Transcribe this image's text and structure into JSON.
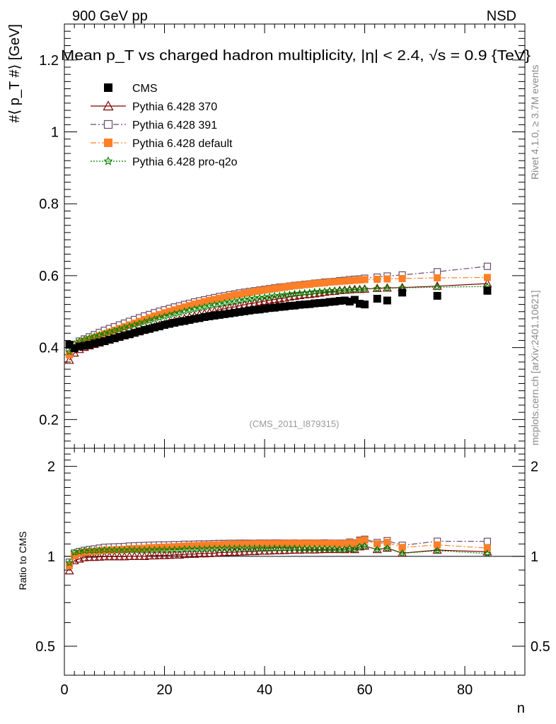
{
  "header": {
    "energy_label": "900 GeV pp",
    "process_label": "NSD",
    "title": "Mean p_T vs charged hadron multiplicity, |η| < 2.4, √s = 0.9 {TeV}",
    "watermark": "(CMS_2011_I879315)",
    "side_rivet": "Rivet 4.1.0, ≥ 3.7M events",
    "side_mcplots": "mcplots.cern.ch [arXiv:2401.10621]"
  },
  "chart_data": {
    "type": "scatter",
    "title": "Mean p_T vs charged hadron multiplicity, |η| < 2.4, √s = 0.9 {TeV}",
    "xlabel": "n",
    "ylabel": "#⟨ p_T #⟩ [GeV]",
    "ratio_ylabel": "Ratio to CMS",
    "xlim": [
      0,
      92
    ],
    "ylim": [
      0.12,
      1.3
    ],
    "ratio_ylim": [
      0.4,
      2.3
    ],
    "x_ticks": [
      0,
      20,
      40,
      60,
      80
    ],
    "y_ticks": [
      0.2,
      0.4,
      0.6,
      0.8,
      1,
      1.2
    ],
    "ratio_ticks": [
      0.5,
      1,
      2
    ],
    "legend_position": "top-left",
    "x": [
      1,
      2,
      3,
      4,
      5,
      6,
      7,
      8,
      9,
      10,
      11,
      12,
      13,
      14,
      15,
      16,
      17,
      18,
      19,
      20,
      21,
      22,
      23,
      24,
      25,
      26,
      27,
      28,
      29,
      30,
      31,
      32,
      33,
      34,
      35,
      36,
      37,
      38,
      39,
      40,
      41,
      42,
      43,
      44,
      45,
      46,
      47,
      48,
      49,
      50,
      51,
      52,
      53,
      54,
      55,
      56,
      57,
      58,
      59,
      60,
      62.5,
      64.5,
      67.5,
      74.5,
      84.5
    ],
    "series": [
      {
        "name": "CMS",
        "color": "#000000",
        "marker": "filled-square",
        "line": "none",
        "values": [
          0.408,
          0.398,
          0.403,
          0.405,
          0.408,
          0.412,
          0.415,
          0.418,
          0.422,
          0.426,
          0.43,
          0.434,
          0.437,
          0.441,
          0.445,
          0.449,
          0.452,
          0.456,
          0.459,
          0.463,
          0.466,
          0.469,
          0.472,
          0.474,
          0.477,
          0.48,
          0.482,
          0.485,
          0.487,
          0.489,
          0.491,
          0.493,
          0.495,
          0.497,
          0.499,
          0.501,
          0.503,
          0.505,
          0.506,
          0.508,
          0.51,
          0.511,
          0.513,
          0.514,
          0.516,
          0.517,
          0.519,
          0.52,
          0.521,
          0.523,
          0.524,
          0.525,
          0.527,
          0.528,
          0.53,
          0.531,
          0.528,
          0.533,
          0.522,
          0.52,
          0.536,
          0.531,
          0.553,
          0.544,
          0.558
        ]
      },
      {
        "name": "Pythia 6.428 370",
        "color": "#7f0000",
        "marker": "open-triangle",
        "line": "solid",
        "values": [
          0.365,
          0.385,
          0.395,
          0.401,
          0.405,
          0.409,
          0.413,
          0.417,
          0.421,
          0.425,
          0.429,
          0.433,
          0.437,
          0.441,
          0.445,
          0.449,
          0.454,
          0.458,
          0.462,
          0.466,
          0.47,
          0.474,
          0.477,
          0.481,
          0.485,
          0.488,
          0.492,
          0.495,
          0.498,
          0.501,
          0.505,
          0.508,
          0.511,
          0.513,
          0.516,
          0.519,
          0.522,
          0.524,
          0.527,
          0.529,
          0.532,
          0.534,
          0.536,
          0.538,
          0.541,
          0.543,
          0.545,
          0.547,
          0.548,
          0.55,
          0.552,
          0.554,
          0.556,
          0.557,
          0.559,
          0.56,
          0.561,
          0.562,
          0.562,
          0.563,
          0.565,
          0.566,
          0.567,
          0.571,
          0.578
        ]
      },
      {
        "name": "Pythia 6.428 391",
        "color": "#6b4c6b",
        "marker": "open-square",
        "line": "dash-dot",
        "values": [
          0.39,
          0.408,
          0.418,
          0.424,
          0.43,
          0.436,
          0.442,
          0.448,
          0.453,
          0.458,
          0.463,
          0.468,
          0.473,
          0.478,
          0.483,
          0.488,
          0.492,
          0.497,
          0.501,
          0.505,
          0.509,
          0.513,
          0.516,
          0.52,
          0.523,
          0.527,
          0.53,
          0.533,
          0.536,
          0.539,
          0.542,
          0.544,
          0.547,
          0.549,
          0.552,
          0.554,
          0.556,
          0.558,
          0.56,
          0.562,
          0.564,
          0.566,
          0.568,
          0.569,
          0.571,
          0.573,
          0.574,
          0.576,
          0.577,
          0.579,
          0.58,
          0.582,
          0.583,
          0.584,
          0.586,
          0.587,
          0.589,
          0.59,
          0.591,
          0.593,
          0.596,
          0.599,
          0.602,
          0.611,
          0.626
        ]
      },
      {
        "name": "Pythia 6.428 default",
        "color": "#ff7f27",
        "marker": "filled-square",
        "line": "dash-dot",
        "values": [
          0.38,
          0.4,
          0.412,
          0.418,
          0.423,
          0.428,
          0.433,
          0.438,
          0.443,
          0.448,
          0.453,
          0.458,
          0.463,
          0.468,
          0.473,
          0.478,
          0.483,
          0.488,
          0.492,
          0.497,
          0.501,
          0.505,
          0.509,
          0.513,
          0.517,
          0.521,
          0.524,
          0.528,
          0.531,
          0.534,
          0.537,
          0.54,
          0.543,
          0.546,
          0.548,
          0.551,
          0.553,
          0.556,
          0.558,
          0.56,
          0.562,
          0.564,
          0.566,
          0.568,
          0.57,
          0.572,
          0.573,
          0.575,
          0.576,
          0.578,
          0.579,
          0.58,
          0.582,
          0.583,
          0.584,
          0.585,
          0.586,
          0.587,
          0.588,
          0.589,
          0.59,
          0.591,
          0.592,
          0.594,
          0.595
        ]
      },
      {
        "name": "Pythia 6.428 pro-q2o",
        "color": "#008000",
        "marker": "open-star",
        "line": "dotted",
        "values": [
          0.388,
          0.41,
          0.418,
          0.423,
          0.427,
          0.431,
          0.435,
          0.439,
          0.443,
          0.447,
          0.451,
          0.455,
          0.459,
          0.463,
          0.467,
          0.471,
          0.475,
          0.479,
          0.483,
          0.487,
          0.49,
          0.494,
          0.497,
          0.501,
          0.504,
          0.507,
          0.51,
          0.513,
          0.516,
          0.519,
          0.521,
          0.524,
          0.526,
          0.528,
          0.531,
          0.533,
          0.535,
          0.537,
          0.539,
          0.54,
          0.542,
          0.544,
          0.545,
          0.547,
          0.548,
          0.55,
          0.551,
          0.552,
          0.553,
          0.555,
          0.556,
          0.557,
          0.558,
          0.559,
          0.559,
          0.56,
          0.561,
          0.561,
          0.562,
          0.563,
          0.564,
          0.565,
          0.566,
          0.568,
          0.57
        ]
      }
    ]
  }
}
